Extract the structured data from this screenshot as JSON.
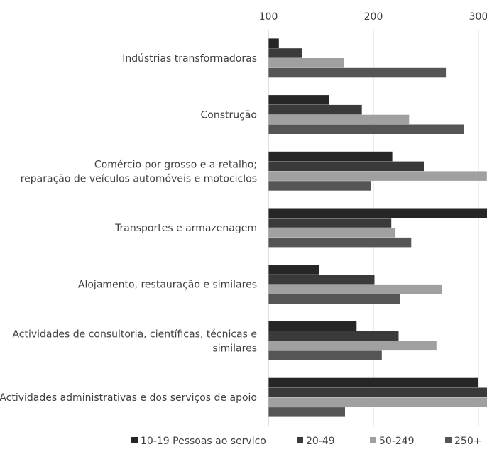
{
  "chart_data": {
    "type": "bar",
    "orientation": "horizontal",
    "xlim": [
      100,
      310
    ],
    "ticks": [
      100,
      200,
      300
    ],
    "tick_labels": [
      "100",
      "200",
      "300"
    ],
    "grid": true,
    "legend_position": "bottom",
    "categories": [
      [
        "Indústrias transformadoras"
      ],
      [
        "Construção"
      ],
      [
        "Comércio por grosso e a retalho;",
        "reparação de veículos automóveis e motociclos"
      ],
      [
        "Transportes e armazenagem"
      ],
      [
        "Alojamento, restauração e similares"
      ],
      [
        "Actividades de consultoria, científicas, técnicas e",
        "similares"
      ],
      [
        "Actividades administrativas e dos serviços de apoio"
      ]
    ],
    "series": [
      {
        "name": "10-19 Pessoas ao servico",
        "color": "#262626",
        "values": [
          110,
          158,
          218,
          310,
          148,
          184,
          300
        ]
      },
      {
        "name": "20-49",
        "color": "#3a3a3a",
        "values": [
          132,
          189,
          248,
          217,
          201,
          224,
          310
        ]
      },
      {
        "name": "50-249",
        "color": "#a0a0a0",
        "values": [
          172,
          234,
          308,
          221,
          265,
          260,
          310
        ]
      },
      {
        "name": "250+",
        "color": "#555555",
        "values": [
          269,
          286,
          198,
          236,
          225,
          208,
          173
        ]
      }
    ]
  }
}
